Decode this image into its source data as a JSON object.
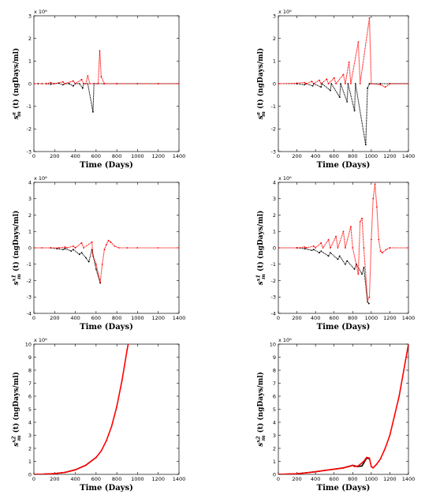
{
  "chart_data": [
    {
      "type": "scatter",
      "xlabel": "Time (Days)",
      "ylabel": "s_m^a (t) (ngDays/ml)",
      "y_multiplier": "x 10⁶",
      "xlim": [
        0,
        1400
      ],
      "ylim": [
        -3,
        3
      ],
      "xticks": [
        0,
        200,
        400,
        600,
        800,
        1000,
        1200,
        1400
      ],
      "yticks": [
        -3,
        -2,
        -1,
        0,
        1,
        2,
        3
      ],
      "grid": false,
      "series": [
        {
          "color": "#000000",
          "points": [
            [
              0,
              0
            ],
            [
              40,
              0
            ],
            [
              80,
              0
            ],
            [
              120,
              0
            ],
            [
              160,
              -0.02
            ],
            [
              200,
              0
            ],
            [
              240,
              0.02
            ],
            [
              280,
              -0.05
            ],
            [
              300,
              0
            ],
            [
              340,
              0
            ],
            [
              380,
              -0.1
            ],
            [
              400,
              0
            ],
            [
              440,
              0
            ],
            [
              470,
              -0.2
            ],
            [
              480,
              0
            ],
            [
              520,
              0
            ],
            [
              570,
              -1.25
            ],
            [
              580,
              0
            ],
            [
              620,
              0
            ],
            [
              680,
              0
            ],
            [
              800,
              0
            ],
            [
              1000,
              0
            ],
            [
              1200,
              0
            ],
            [
              1400,
              0
            ]
          ]
        },
        {
          "color": "#ff0000",
          "points": [
            [
              0,
              0
            ],
            [
              120,
              0
            ],
            [
              160,
              0.05
            ],
            [
              200,
              0
            ],
            [
              280,
              0.08
            ],
            [
              300,
              0
            ],
            [
              380,
              0.12
            ],
            [
              400,
              0
            ],
            [
              460,
              0.18
            ],
            [
              480,
              0
            ],
            [
              500,
              0
            ],
            [
              520,
              0.35
            ],
            [
              540,
              0
            ],
            [
              620,
              0
            ],
            [
              635,
              1.45
            ],
            [
              650,
              0.3
            ],
            [
              680,
              0
            ],
            [
              800,
              0
            ],
            [
              1000,
              0
            ],
            [
              1200,
              0
            ],
            [
              1400,
              0
            ]
          ]
        }
      ]
    },
    {
      "type": "scatter",
      "xlabel": "Time (Days)",
      "ylabel": "s_m^a (t) (ngDays/ml)",
      "y_multiplier": "x 10⁶",
      "xlim": [
        0,
        1400
      ],
      "ylim": [
        -3,
        3
      ],
      "xticks": [
        0,
        200,
        400,
        600,
        800,
        1000,
        1200,
        1400
      ],
      "yticks": [
        -3,
        -2,
        -1,
        0,
        1,
        2,
        3
      ],
      "grid": false,
      "series": [
        {
          "color": "#000000",
          "points": [
            [
              0,
              0
            ],
            [
              200,
              0
            ],
            [
              280,
              -0.05
            ],
            [
              300,
              0
            ],
            [
              370,
              -0.1
            ],
            [
              380,
              0
            ],
            [
              460,
              -0.15
            ],
            [
              470,
              0
            ],
            [
              560,
              -0.3
            ],
            [
              570,
              0
            ],
            [
              660,
              -0.6
            ],
            [
              670,
              0
            ],
            [
              740,
              -0.8
            ],
            [
              750,
              0
            ],
            [
              820,
              -1.2
            ],
            [
              830,
              0
            ],
            [
              940,
              -2.7
            ],
            [
              960,
              -0.2
            ],
            [
              980,
              0
            ],
            [
              1100,
              0
            ],
            [
              1200,
              0
            ],
            [
              1400,
              0
            ]
          ]
        },
        {
          "color": "#ff0000",
          "points": [
            [
              0,
              0
            ],
            [
              200,
              0.02
            ],
            [
              280,
              0.05
            ],
            [
              300,
              0
            ],
            [
              360,
              0.1
            ],
            [
              380,
              0
            ],
            [
              440,
              0.15
            ],
            [
              460,
              0
            ],
            [
              520,
              0.2
            ],
            [
              540,
              0
            ],
            [
              600,
              0.25
            ],
            [
              620,
              0
            ],
            [
              700,
              0.4
            ],
            [
              720,
              0
            ],
            [
              760,
              0.95
            ],
            [
              780,
              0
            ],
            [
              860,
              1.85
            ],
            [
              880,
              0
            ],
            [
              980,
              2.9
            ],
            [
              1000,
              0
            ],
            [
              1100,
              -0.05
            ],
            [
              1150,
              -0.15
            ],
            [
              1200,
              0
            ],
            [
              1400,
              0
            ]
          ]
        }
      ]
    },
    {
      "type": "scatter",
      "xlabel": "Time (Days)",
      "ylabel": "s_m^x1 (t) (ngDays/ml)",
      "y_multiplier": "x 10⁶",
      "xlim": [
        0,
        1400
      ],
      "ylim": [
        -4,
        4
      ],
      "xticks": [
        0,
        200,
        400,
        600,
        800,
        1000,
        1200,
        1400
      ],
      "yticks": [
        -4,
        -3,
        -2,
        -1,
        0,
        1,
        2,
        3,
        4
      ],
      "grid": false,
      "series": [
        {
          "color": "#000000",
          "points": [
            [
              0,
              0
            ],
            [
              160,
              0
            ],
            [
              220,
              -0.05
            ],
            [
              280,
              -0.1
            ],
            [
              300,
              -0.05
            ],
            [
              360,
              -0.2
            ],
            [
              380,
              -0.1
            ],
            [
              440,
              -0.4
            ],
            [
              460,
              -0.3
            ],
            [
              500,
              -0.6
            ],
            [
              530,
              -0.85
            ],
            [
              560,
              -0.1
            ],
            [
              600,
              -1.3
            ],
            [
              640,
              -2.15
            ]
          ]
        },
        {
          "color": "#ff0000",
          "points": [
            [
              0,
              0
            ],
            [
              80,
              0
            ],
            [
              160,
              0
            ],
            [
              240,
              0
            ],
            [
              300,
              0.05
            ],
            [
              320,
              0
            ],
            [
              380,
              0.1
            ],
            [
              400,
              0
            ],
            [
              460,
              0.3
            ],
            [
              480,
              0
            ],
            [
              560,
              0.35
            ],
            [
              570,
              -0.5
            ],
            [
              600,
              -1.0
            ],
            [
              640,
              -2.1
            ],
            [
              660,
              -1.0
            ],
            [
              680,
              -0.1
            ],
            [
              700,
              0.2
            ],
            [
              720,
              0.45
            ],
            [
              740,
              0.35
            ],
            [
              780,
              0.1
            ],
            [
              820,
              0
            ],
            [
              900,
              0
            ],
            [
              1000,
              0
            ],
            [
              1200,
              0
            ],
            [
              1400,
              0
            ]
          ]
        }
      ]
    },
    {
      "type": "scatter",
      "xlabel": "Time (Days)",
      "ylabel": "s_m^x1 (t) (ngDays/ml)",
      "y_multiplier": "x 10⁶",
      "xlim": [
        0,
        1400
      ],
      "ylim": [
        -4,
        4
      ],
      "xticks": [
        0,
        200,
        400,
        600,
        800,
        1000,
        1200,
        1400
      ],
      "yticks": [
        -4,
        -3,
        -2,
        -1,
        0,
        1,
        2,
        3,
        4
      ],
      "grid": false,
      "series": [
        {
          "color": "#000000",
          "points": [
            [
              0,
              0
            ],
            [
              200,
              0
            ],
            [
              280,
              -0.05
            ],
            [
              360,
              -0.15
            ],
            [
              380,
              -0.1
            ],
            [
              440,
              -0.3
            ],
            [
              460,
              -0.2
            ],
            [
              540,
              -0.5
            ],
            [
              560,
              -0.3
            ],
            [
              640,
              -0.7
            ],
            [
              660,
              -0.5
            ],
            [
              720,
              -1.0
            ],
            [
              740,
              -0.8
            ],
            [
              820,
              -1.3
            ],
            [
              840,
              -1.0
            ],
            [
              900,
              -1.6
            ],
            [
              920,
              -1.2
            ],
            [
              960,
              -3.3
            ],
            [
              975,
              -3.4
            ]
          ]
        },
        {
          "color": "#ff0000",
          "points": [
            [
              0,
              0
            ],
            [
              200,
              0
            ],
            [
              280,
              0.05
            ],
            [
              300,
              0
            ],
            [
              380,
              0.1
            ],
            [
              400,
              0
            ],
            [
              460,
              0.3
            ],
            [
              480,
              0
            ],
            [
              540,
              0.5
            ],
            [
              560,
              0
            ],
            [
              620,
              0.7
            ],
            [
              640,
              0
            ],
            [
              700,
              1.0
            ],
            [
              720,
              0
            ],
            [
              780,
              1.3
            ],
            [
              800,
              0
            ],
            [
              860,
              -1.6
            ],
            [
              880,
              1.6
            ],
            [
              900,
              1.8
            ],
            [
              920,
              0
            ],
            [
              960,
              -3.2
            ],
            [
              980,
              -3.0
            ],
            [
              1000,
              0.5
            ],
            [
              1020,
              3.0
            ],
            [
              1040,
              3.9
            ],
            [
              1060,
              2.5
            ],
            [
              1080,
              0.5
            ],
            [
              1100,
              -0.2
            ],
            [
              1120,
              -0.3
            ],
            [
              1160,
              -0.1
            ],
            [
              1200,
              0
            ],
            [
              1400,
              0
            ]
          ]
        }
      ]
    },
    {
      "type": "line",
      "xlabel": "Time (Days)",
      "ylabel": "s_m^x2 (t) (ngDays/ml)",
      "y_multiplier": "x 10⁶",
      "xlim": [
        0,
        1400
      ],
      "ylim": [
        0,
        10
      ],
      "xticks": [
        0,
        200,
        400,
        600,
        800,
        1000,
        1200,
        1400
      ],
      "yticks": [
        0,
        1,
        2,
        3,
        4,
        5,
        6,
        7,
        8,
        9,
        10
      ],
      "grid": false,
      "series": [
        {
          "color": "#000000",
          "points": [
            [
              0,
              0
            ],
            [
              100,
              0.02
            ],
            [
              200,
              0.06
            ],
            [
              300,
              0.15
            ],
            [
              400,
              0.35
            ],
            [
              500,
              0.7
            ],
            [
              600,
              1.3
            ]
          ]
        },
        {
          "color": "#ff0000",
          "points": [
            [
              0,
              0
            ],
            [
              100,
              0.02
            ],
            [
              200,
              0.06
            ],
            [
              300,
              0.15
            ],
            [
              400,
              0.35
            ],
            [
              500,
              0.7
            ],
            [
              600,
              1.3
            ],
            [
              650,
              1.8
            ],
            [
              700,
              2.6
            ],
            [
              750,
              3.7
            ],
            [
              800,
              5.2
            ],
            [
              850,
              7.2
            ],
            [
              900,
              9.6
            ],
            [
              910,
              10
            ]
          ]
        }
      ]
    },
    {
      "type": "line",
      "xlabel": "Time (Days)",
      "ylabel": "s_m^x2 (t) (ngDays/ml)",
      "y_multiplier": "x 10⁶",
      "xlim": [
        0,
        1400
      ],
      "ylim": [
        0,
        10
      ],
      "xticks": [
        0,
        200,
        400,
        600,
        800,
        1000,
        1200,
        1400
      ],
      "yticks": [
        0,
        1,
        2,
        3,
        4,
        5,
        6,
        7,
        8,
        9,
        10
      ],
      "grid": false,
      "series": [
        {
          "color": "#000000",
          "points": [
            [
              0,
              0
            ],
            [
              200,
              0.05
            ],
            [
              300,
              0.12
            ],
            [
              400,
              0.2
            ],
            [
              500,
              0.3
            ],
            [
              600,
              0.4
            ],
            [
              700,
              0.5
            ],
            [
              800,
              0.7
            ],
            [
              850,
              0.6
            ],
            [
              900,
              0.65
            ],
            [
              950,
              1.25
            ],
            [
              980,
              1.2
            ]
          ]
        },
        {
          "color": "#ff0000",
          "points": [
            [
              0,
              0
            ],
            [
              200,
              0.05
            ],
            [
              300,
              0.12
            ],
            [
              400,
              0.2
            ],
            [
              500,
              0.3
            ],
            [
              600,
              0.4
            ],
            [
              700,
              0.5
            ],
            [
              760,
              0.6
            ],
            [
              800,
              0.7
            ],
            [
              820,
              0.6
            ],
            [
              860,
              0.65
            ],
            [
              920,
              1.0
            ],
            [
              950,
              1.3
            ],
            [
              980,
              1.25
            ],
            [
              1000,
              0.6
            ],
            [
              1020,
              0.5
            ],
            [
              1060,
              0.8
            ],
            [
              1100,
              1.2
            ],
            [
              1150,
              2.0
            ],
            [
              1200,
              3.0
            ],
            [
              1250,
              4.5
            ],
            [
              1300,
              6.0
            ],
            [
              1350,
              8.0
            ],
            [
              1400,
              10
            ]
          ]
        }
      ]
    }
  ]
}
